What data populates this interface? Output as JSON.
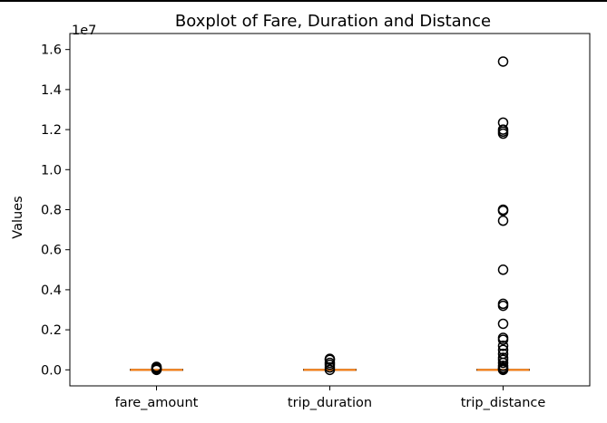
{
  "chart_data": {
    "type": "boxplot",
    "title": "Boxplot of Fare, Duration and Distance",
    "ylabel": "Values",
    "xlabel": "",
    "offset_label": "1e7",
    "categories": [
      "fare_amount",
      "trip_duration",
      "trip_distance"
    ],
    "y_ticks": [
      0.0,
      0.2,
      0.4,
      0.6,
      0.8,
      1.0,
      1.2,
      1.4,
      1.6
    ],
    "y_tick_labels": [
      "0.0",
      "0.2",
      "0.4",
      "0.6",
      "0.8",
      "1.0",
      "1.2",
      "1.4",
      "1.6"
    ],
    "ylim": [
      -0.08,
      1.68
    ],
    "y_scale_factor": 10000000,
    "grid": false,
    "median_color": "#ff7f0e",
    "boxes": [
      {
        "name": "fare_amount",
        "median": 0.0,
        "q1": 0.0,
        "q3": 0.0,
        "whisker_low": 0.0,
        "whisker_high": 0.0,
        "outliers": [
          0.0,
          0.003,
          0.006,
          0.01,
          0.015
        ]
      },
      {
        "name": "trip_duration",
        "median": 0.0,
        "q1": 0.0,
        "q3": 0.0,
        "whisker_low": 0.0,
        "whisker_high": 0.0,
        "outliers": [
          0.0,
          0.012,
          0.025,
          0.035,
          0.05,
          0.055
        ]
      },
      {
        "name": "trip_distance",
        "median": 0.0,
        "q1": 0.0,
        "q3": 0.0,
        "whisker_low": 0.0,
        "whisker_high": 0.0,
        "outliers": [
          0.0,
          0.005,
          0.01,
          0.02,
          0.035,
          0.05,
          0.06,
          0.08,
          0.1,
          0.12,
          0.15,
          0.16,
          0.23,
          0.32,
          0.33,
          0.5,
          0.745,
          0.795,
          0.8,
          1.18,
          1.19,
          1.2,
          1.235,
          1.54
        ]
      }
    ]
  }
}
